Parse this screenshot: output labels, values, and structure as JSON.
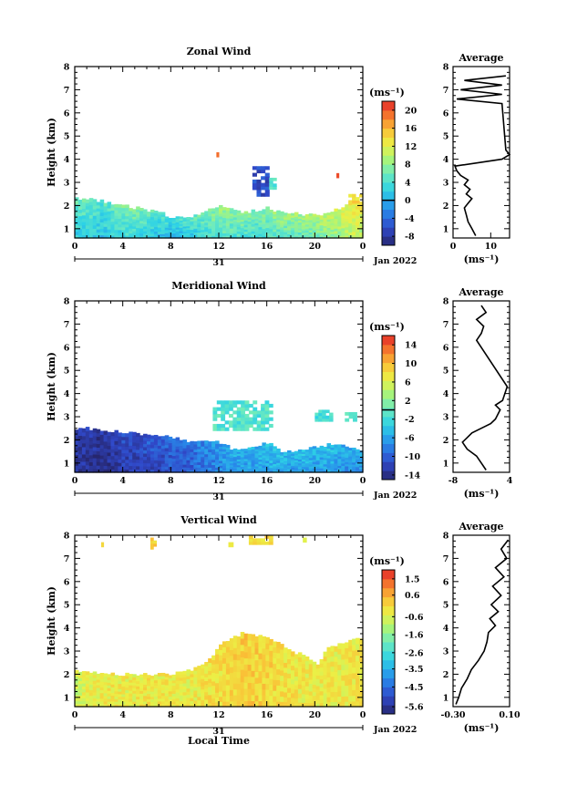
{
  "chart_data": [
    {
      "type": "heatmap",
      "title": "Zonal Wind",
      "ylabel": "Height (km)",
      "xlabel": "",
      "x_ticks": [
        "0",
        "4",
        "8",
        "12",
        "16",
        "20",
        "0"
      ],
      "xlim": [
        0,
        24
      ],
      "ylim": [
        0.6,
        8
      ],
      "y_ticks": [
        "1",
        "2",
        "3",
        "4",
        "5",
        "6",
        "7",
        "8"
      ],
      "date_day": "31",
      "date_month": "Jan 2022",
      "colorbar": {
        "unit": "(ms⁻¹)",
        "min": -10,
        "max": 22,
        "tick_values": [
          -8,
          -4,
          0,
          4,
          8,
          12,
          16,
          20
        ],
        "tick_labels": [
          "-8",
          "-4",
          "0",
          "4",
          "8",
          "12",
          "16",
          "20"
        ],
        "zero_line": 0
      },
      "field": {
        "low_layer_top_km": [
          2.3,
          2.3,
          2.2,
          2.1,
          2.0,
          1.9,
          1.8,
          1.7,
          1.5,
          1.5,
          1.6,
          1.8,
          2.0,
          1.8,
          1.7,
          1.8,
          1.9,
          1.7,
          1.7,
          1.6,
          1.6,
          1.7,
          1.9,
          2.3,
          2.1
        ],
        "low_layer_value_ms": [
          6,
          6,
          5,
          6,
          7,
          7,
          6,
          5,
          4,
          5,
          6,
          7,
          9,
          8,
          8,
          7,
          8,
          9,
          9,
          9,
          10,
          11,
          12,
          14,
          13
        ],
        "patches": [
          {
            "x": [
              14.8,
              16.2
            ],
            "y": [
              2.4,
              3.7
            ],
            "value": -6
          },
          {
            "x": [
              16.2,
              16.8
            ],
            "y": [
              2.7,
              3.2
            ],
            "value": 4
          },
          {
            "x": [
              11.8,
              12.0
            ],
            "y": [
              4.1,
              4.3
            ],
            "value": 18
          },
          {
            "x": [
              21.8,
              22.0
            ],
            "y": [
              3.2,
              3.4
            ],
            "value": 20
          },
          {
            "x": [
              22.8,
              24.0
            ],
            "y": [
              2.1,
              2.5
            ],
            "value": 14
          }
        ]
      },
      "average_profile": {
        "title": "Average",
        "xlabel": "(ms⁻¹)",
        "xlim": [
          0,
          15
        ],
        "x_ticks": [
          "0",
          "10"
        ],
        "x_tick_values": [
          0,
          10
        ],
        "ylim": [
          0.6,
          8
        ],
        "heights_km": [
          0.7,
          1.0,
          1.3,
          1.6,
          1.9,
          2.1,
          2.3,
          2.5,
          2.7,
          2.9,
          3.1,
          3.3,
          3.5,
          3.7,
          4.0,
          4.2,
          4.4,
          6.4,
          6.6,
          6.8,
          7.0,
          7.2,
          7.4,
          7.6
        ],
        "values_ms": [
          6,
          5,
          4,
          3.5,
          3,
          4,
          5,
          3.5,
          4.5,
          3,
          4,
          2,
          1,
          0.5,
          13,
          15,
          14,
          13,
          1,
          13,
          2,
          13,
          3,
          14
        ]
      }
    },
    {
      "type": "heatmap",
      "title": "Meridional Wind",
      "ylabel": "Height (km)",
      "xlabel": "",
      "x_ticks": [
        "0",
        "4",
        "8",
        "12",
        "16",
        "20",
        "0"
      ],
      "xlim": [
        0,
        24
      ],
      "ylim": [
        0.6,
        8
      ],
      "y_ticks": [
        "1",
        "2",
        "3",
        "4",
        "5",
        "6",
        "7",
        "8"
      ],
      "date_day": "31",
      "date_month": "Jan 2022",
      "colorbar": {
        "unit": "(ms⁻¹)",
        "min": -15,
        "max": 16,
        "tick_values": [
          -14,
          -10,
          -6,
          -2,
          2,
          6,
          10,
          14
        ],
        "tick_labels": [
          "-14",
          "-10",
          "-6",
          "-2",
          "2",
          "6",
          "10",
          "14"
        ],
        "zero_line": 0
      },
      "field": {
        "low_layer_top_km": [
          2.5,
          2.5,
          2.4,
          2.4,
          2.3,
          2.3,
          2.2,
          2.2,
          2.1,
          2.0,
          1.9,
          1.9,
          1.9,
          1.6,
          1.6,
          1.7,
          1.9,
          1.5,
          1.5,
          1.6,
          1.7,
          1.8,
          1.8,
          1.6,
          1.5
        ],
        "low_layer_value_ms": [
          -12,
          -12,
          -13,
          -12,
          -11,
          -11,
          -10,
          -10,
          -9,
          -9,
          -8,
          -7,
          -6,
          -5,
          -5,
          -5,
          -4,
          -4,
          -5,
          -4,
          -5,
          -4,
          -5,
          -6,
          -5
        ],
        "patches": [
          {
            "x": [
              11.5,
              16.5
            ],
            "y": [
              2.4,
              3.7
            ],
            "value": -1
          },
          {
            "x": [
              20.0,
              21.5
            ],
            "y": [
              2.8,
              3.3
            ],
            "value": -2
          },
          {
            "x": [
              22.5,
              23.5
            ],
            "y": [
              2.8,
              3.2
            ],
            "value": -1
          }
        ]
      },
      "average_profile": {
        "title": "Average",
        "xlabel": "(ms⁻¹)",
        "xlim": [
          -8,
          4
        ],
        "x_ticks": [
          "-8",
          "4"
        ],
        "x_tick_values": [
          -8,
          4
        ],
        "ylim": [
          0.6,
          8
        ],
        "heights_km": [
          0.7,
          1.0,
          1.3,
          1.6,
          1.9,
          2.1,
          2.3,
          2.5,
          2.7,
          2.9,
          3.1,
          3.3,
          3.5,
          3.7,
          4.3,
          6.3,
          6.6,
          6.9,
          7.2,
          7.5,
          7.8
        ],
        "values_ms": [
          -1,
          -2,
          -3,
          -5,
          -6,
          -5,
          -4,
          -2,
          0,
          1,
          1.5,
          2,
          1,
          2.5,
          3.5,
          -3,
          -2,
          -1.5,
          -3,
          -1,
          -2
        ]
      }
    },
    {
      "type": "heatmap",
      "title": "Vertical Wind",
      "ylabel": "Height (km)",
      "xlabel": "Local Time",
      "x_ticks": [
        "0",
        "4",
        "8",
        "12",
        "16",
        "20",
        "0"
      ],
      "xlim": [
        0,
        24
      ],
      "ylim": [
        0.6,
        8
      ],
      "y_ticks": [
        "1",
        "2",
        "3",
        "4",
        "5",
        "6",
        "7",
        "8"
      ],
      "date_day": "31",
      "date_month": "Jan 2022",
      "colorbar": {
        "unit": "(ms⁻¹)",
        "min": -6,
        "max": 2,
        "tick_values": [
          -5.6,
          -4.5,
          -3.5,
          -2.6,
          -1.6,
          -0.6,
          0.6,
          1.5
        ],
        "tick_labels": [
          "-5.6",
          "-4.5",
          "-3.5",
          "-2.6",
          "-1.6",
          "-0.6",
          "0.6",
          "1.5"
        ]
      },
      "field": {
        "low_layer_top_km": [
          2.2,
          2.1,
          2.0,
          2.0,
          2.0,
          2.0,
          2.0,
          2.0,
          2.0,
          2.1,
          2.3,
          2.6,
          3.3,
          3.6,
          3.8,
          3.7,
          3.6,
          3.3,
          3.0,
          2.8,
          2.4,
          3.2,
          3.3,
          3.6,
          3.5
        ],
        "low_layer_value_ms": [
          -0.8,
          -0.4,
          -0.3,
          -0.3,
          -0.4,
          -0.3,
          -0.2,
          -0.3,
          -0.3,
          -0.4,
          -0.3,
          -0.1,
          -0.1,
          0.1,
          0.2,
          0.1,
          0.1,
          -0.1,
          -0.2,
          -0.3,
          -0.3,
          -0.3,
          -0.4,
          -0.2,
          -0.3
        ],
        "patches": [
          {
            "x": [
              2.2,
              2.4
            ],
            "y": [
              7.5,
              7.7
            ],
            "value": -0.3
          },
          {
            "x": [
              6.3,
              6.8
            ],
            "y": [
              7.4,
              7.9
            ],
            "value": 0.1
          },
          {
            "x": [
              12.8,
              13.2
            ],
            "y": [
              7.5,
              7.7
            ],
            "value": -0.3
          },
          {
            "x": [
              14.5,
              16.5
            ],
            "y": [
              7.6,
              8.0
            ],
            "value": 0.1
          },
          {
            "x": [
              19.0,
              19.3
            ],
            "y": [
              7.7,
              7.9
            ],
            "value": -0.2
          }
        ]
      },
      "average_profile": {
        "title": "Average",
        "xlabel": "(ms⁻¹)",
        "xlim": [
          -0.3,
          0.1
        ],
        "x_ticks": [
          "-0.30",
          "0.10"
        ],
        "x_tick_values": [
          -0.3,
          0.1
        ],
        "ylim": [
          0.6,
          8
        ],
        "heights_km": [
          0.7,
          1.0,
          1.4,
          1.8,
          2.2,
          2.6,
          3.0,
          3.4,
          3.8,
          4.1,
          4.4,
          4.7,
          5.0,
          5.4,
          5.8,
          6.2,
          6.6,
          7.0,
          7.4,
          7.8
        ],
        "values_ms": [
          -0.28,
          -0.26,
          -0.24,
          -0.2,
          -0.17,
          -0.12,
          -0.08,
          -0.06,
          -0.05,
          0.0,
          -0.04,
          0.02,
          -0.03,
          0.04,
          -0.02,
          0.06,
          0.0,
          0.08,
          0.04,
          0.09
        ]
      }
    }
  ]
}
